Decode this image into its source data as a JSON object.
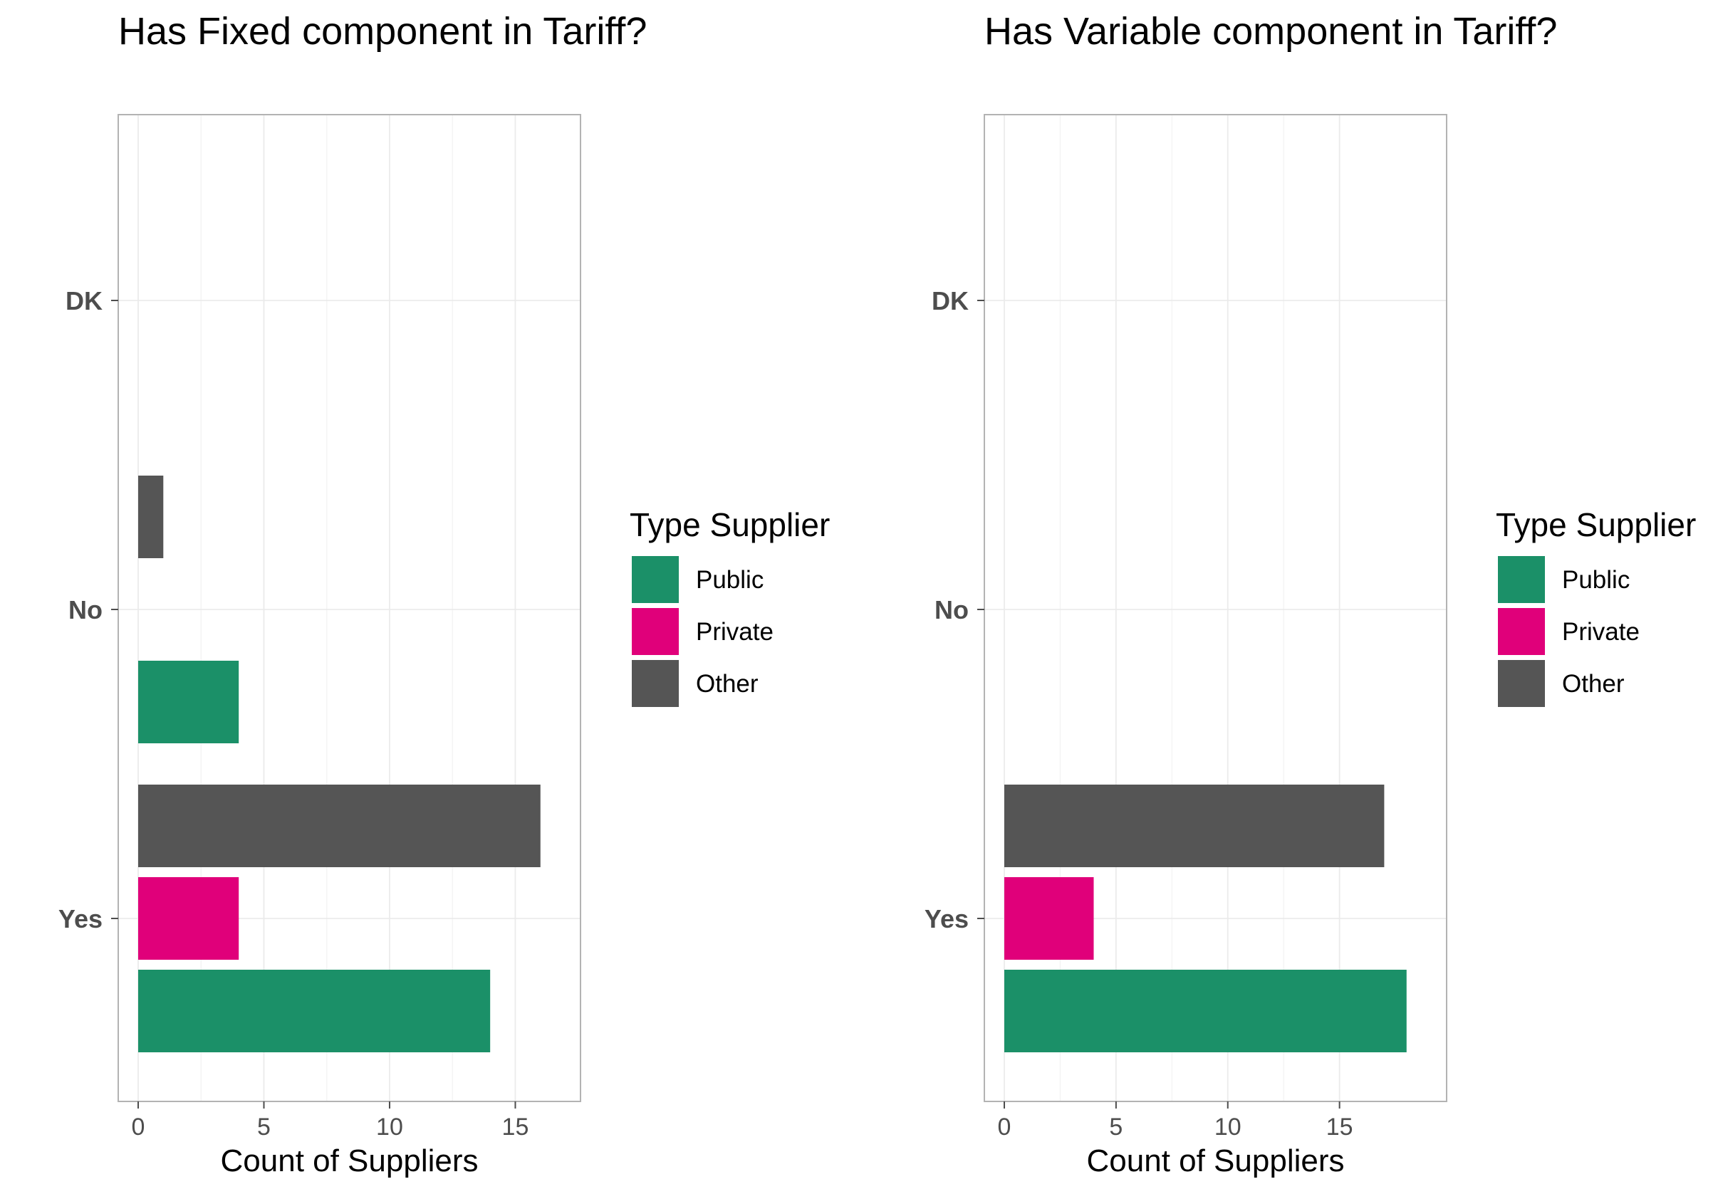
{
  "chart_data": [
    {
      "type": "bar",
      "orientation": "horizontal",
      "title": "Has Fixed component in Tariff?",
      "xlabel": "Count of Suppliers",
      "ylabel": "",
      "categories": [
        "Yes",
        "No",
        "DK"
      ],
      "xlim": [
        0,
        16.8
      ],
      "xticks": [
        0,
        5,
        10,
        15
      ],
      "grid": true,
      "series": [
        {
          "name": "Public",
          "color": "#1b9068",
          "values": [
            14,
            4,
            0
          ]
        },
        {
          "name": "Private",
          "color": "#e0007a",
          "values": [
            4,
            0,
            0
          ]
        },
        {
          "name": "Other",
          "color": "#555555",
          "values": [
            16,
            1,
            0
          ]
        }
      ],
      "legend": {
        "title": "Type Supplier",
        "position": "right",
        "entries": [
          "Public",
          "Private",
          "Other"
        ]
      }
    },
    {
      "type": "bar",
      "orientation": "horizontal",
      "title": "Has Variable component in Tariff?",
      "xlabel": "Count of Suppliers",
      "ylabel": "",
      "categories": [
        "Yes",
        "No",
        "DK"
      ],
      "xlim": [
        0,
        18.9
      ],
      "xticks": [
        0,
        5,
        10,
        15
      ],
      "grid": true,
      "series": [
        {
          "name": "Public",
          "color": "#1b9068",
          "values": [
            18,
            0,
            0
          ]
        },
        {
          "name": "Private",
          "color": "#e0007a",
          "values": [
            4,
            0,
            0
          ]
        },
        {
          "name": "Other",
          "color": "#555555",
          "values": [
            17,
            0,
            0
          ]
        }
      ],
      "legend": {
        "title": "Type Supplier",
        "position": "right",
        "entries": [
          "Public",
          "Private",
          "Other"
        ]
      }
    }
  ]
}
